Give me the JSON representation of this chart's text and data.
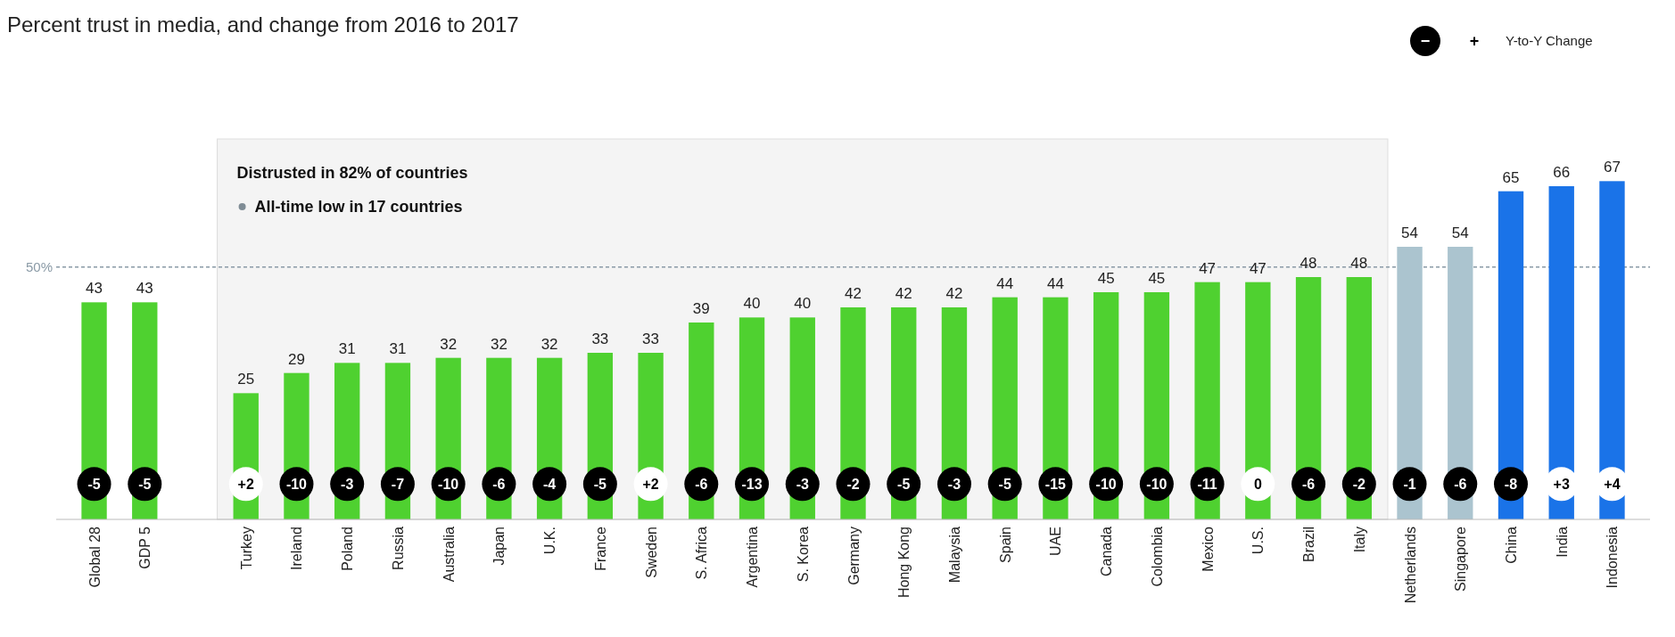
{
  "chart_data": {
    "type": "bar",
    "title": "Percent trust in media, and change from 2016 to 2017",
    "categories": [
      "Global 28",
      "GDP 5",
      null,
      "Turkey",
      "Ireland",
      "Poland",
      "Russia",
      "Australia",
      "Japan",
      "U.K.",
      "France",
      "Sweden",
      "S. Africa",
      "Argentina",
      "S. Korea",
      "Germany",
      "Hong Kong",
      "Malaysia",
      "Spain",
      "UAE",
      "Canada",
      "Colombia",
      "Mexico",
      "U.S.",
      "Brazil",
      "Italy",
      "Netherlands",
      "Singapore",
      "China",
      "India",
      "Indonesia"
    ],
    "values": [
      43,
      43,
      null,
      25,
      29,
      31,
      31,
      32,
      32,
      32,
      33,
      33,
      39,
      40,
      40,
      42,
      42,
      42,
      44,
      44,
      45,
      45,
      47,
      47,
      48,
      48,
      54,
      54,
      65,
      66,
      67
    ],
    "colors": [
      "#4fd130",
      "#4fd130",
      null,
      "#4fd130",
      "#4fd130",
      "#4fd130",
      "#4fd130",
      "#4fd130",
      "#4fd130",
      "#4fd130",
      "#4fd130",
      "#4fd130",
      "#4fd130",
      "#4fd130",
      "#4fd130",
      "#4fd130",
      "#4fd130",
      "#4fd130",
      "#4fd130",
      "#4fd130",
      "#4fd130",
      "#4fd130",
      "#4fd130",
      "#4fd130",
      "#4fd130",
      "#4fd130",
      "#abc4cf",
      "#abc4cf",
      "#1a73e8",
      "#1a73e8",
      "#1a73e8"
    ],
    "bands": [
      {
        "axis": "x",
        "from": "Turkey",
        "to": "Italy",
        "color": "#f4f4f4"
      }
    ],
    "data_labels": true,
    "ylim": [
      0,
      75
    ],
    "tick_labels": "x",
    "ref_lines": [
      {
        "axis": "y",
        "value": 50,
        "label": "50%",
        "color": "#8a9aa6",
        "line_style": "dashed"
      }
    ],
    "annotations": [
      "Distrusted in 82% of countries",
      "All-time low in 17 countries",
      "−",
      "+",
      "Y-to-Y Change",
      {
        "text": "-5",
        "x": "Global 28",
        "y": 7
      },
      {
        "text": "-5",
        "x": "GDP 5",
        "y": 7
      },
      {
        "text": "+2",
        "x": "Turkey",
        "y": 7
      },
      {
        "text": "-10",
        "x": "Ireland",
        "y": 7
      },
      {
        "text": "-3",
        "x": "Poland",
        "y": 7
      },
      {
        "text": "-7",
        "x": "Russia",
        "y": 7
      },
      {
        "text": "-10",
        "x": "Australia",
        "y": 7
      },
      {
        "text": "-6",
        "x": "Japan",
        "y": 7
      },
      {
        "text": "-4",
        "x": "U.K.",
        "y": 7
      },
      {
        "text": "-5",
        "x": "France",
        "y": 7
      },
      {
        "text": "+2",
        "x": "Sweden",
        "y": 7
      },
      {
        "text": "-6",
        "x": "S. Africa",
        "y": 7
      },
      {
        "text": "-13",
        "x": "Argentina",
        "y": 7
      },
      {
        "text": "-3",
        "x": "S. Korea",
        "y": 7
      },
      {
        "text": "-2",
        "x": "Germany",
        "y": 7
      },
      {
        "text": "-5",
        "x": "Hong Kong",
        "y": 7
      },
      {
        "text": "-3",
        "x": "Malaysia",
        "y": 7
      },
      {
        "text": "-5",
        "x": "Spain",
        "y": 7
      },
      {
        "text": "-15",
        "x": "UAE",
        "y": 7
      },
      {
        "text": "-10",
        "x": "Canada",
        "y": 7
      },
      {
        "text": "-10",
        "x": "Colombia",
        "y": 7
      },
      {
        "text": "-11",
        "x": "Mexico",
        "y": 7
      },
      {
        "text": "0",
        "x": "U.S.",
        "y": 7
      },
      {
        "text": "-6",
        "x": "Brazil",
        "y": 7
      },
      {
        "text": "-2",
        "x": "Italy",
        "y": 7
      },
      {
        "text": "-1",
        "x": "Netherlands",
        "y": 7
      },
      {
        "text": "-6",
        "x": "Singapore",
        "y": 7
      },
      {
        "text": "-8",
        "x": "China",
        "y": 7
      },
      {
        "text": "+3",
        "x": "India",
        "y": 7
      },
      {
        "text": "+4",
        "x": "Indonesia",
        "y": 7
      }
    ]
  }
}
